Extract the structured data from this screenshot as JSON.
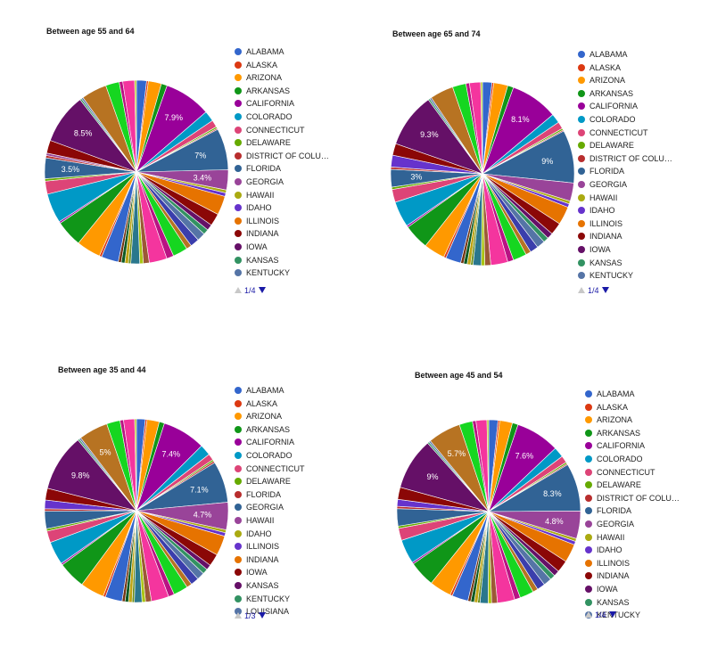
{
  "colors": [
    "#3366cc",
    "#dc3912",
    "#ff9900",
    "#109618",
    "#990099",
    "#0099c6",
    "#dd4477",
    "#66aa00",
    "#b82e2e",
    "#316395",
    "#994499",
    "#aaaa11",
    "#6633cc",
    "#e67300",
    "#8b0707",
    "#651067",
    "#329262",
    "#5574a6",
    "#3b3eac",
    "#b77322",
    "#16d620",
    "#b91383",
    "#f4359e",
    "#9c5935",
    "#a9c413",
    "#2a778d",
    "#668d1c",
    "#bea413",
    "#0c5922",
    "#743411"
  ],
  "chart_data": [
    {
      "type": "pie",
      "title": "Between age 55 and 64",
      "legend": [
        "ALABAMA",
        "ALASKA",
        "ARIZONA",
        "ARKANSAS",
        "CALIFORNIA",
        "COLORADO",
        "CONNECTICUT",
        "DELAWARE",
        "DISTRICT OF COLU…",
        "FLORIDA",
        "GEORGIA",
        "HAWAII",
        "IDAHO",
        "ILLINOIS",
        "INDIANA",
        "IOWA",
        "KANSAS",
        "KENTUCKY"
      ],
      "page": "1/4",
      "slices": [
        {
          "value": 1.7,
          "color": "#3366cc"
        },
        {
          "value": 0.3,
          "color": "#dc3912"
        },
        {
          "value": 2.2,
          "color": "#ff9900"
        },
        {
          "value": 1.0,
          "color": "#109618"
        },
        {
          "value": 7.9,
          "color": "#990099",
          "label": "7.9%"
        },
        {
          "value": 1.8,
          "color": "#0099c6"
        },
        {
          "value": 1.2,
          "color": "#dd4477"
        },
        {
          "value": 0.3,
          "color": "#66aa00"
        },
        {
          "value": 0.2,
          "color": "#b82e2e"
        },
        {
          "value": 7.0,
          "color": "#316395",
          "label": "7%"
        },
        {
          "value": 3.4,
          "color": "#994499",
          "label": "3.4%"
        },
        {
          "value": 0.5,
          "color": "#aaaa11"
        },
        {
          "value": 0.6,
          "color": "#6633cc"
        },
        {
          "value": 3.2,
          "color": "#e67300"
        },
        {
          "value": 2.1,
          "color": "#8b0707"
        },
        {
          "value": 1.0,
          "color": "#651067"
        },
        {
          "value": 0.9,
          "color": "#329262"
        },
        {
          "value": 1.4,
          "color": "#5574a6"
        },
        {
          "value": 1.5,
          "color": "#3b3eac"
        },
        {
          "value": 0.9,
          "color": "#b77322"
        },
        {
          "value": 2.5,
          "color": "#16d620"
        },
        {
          "value": 1.2,
          "color": "#b91383"
        },
        {
          "value": 3.0,
          "color": "#f4359e"
        },
        {
          "value": 1.0,
          "color": "#9c5935"
        },
        {
          "value": 0.6,
          "color": "#a9c413"
        },
        {
          "value": 1.5,
          "color": "#2a778d"
        },
        {
          "value": 0.4,
          "color": "#668d1c"
        },
        {
          "value": 0.6,
          "color": "#bea413"
        },
        {
          "value": 0.6,
          "color": "#0c5922"
        },
        {
          "value": 0.5,
          "color": "#743411"
        },
        {
          "value": 2.9,
          "color": "#3366cc"
        },
        {
          "value": 0.4,
          "color": "#dc3912"
        },
        {
          "value": 4.1,
          "color": "#ff9900"
        },
        {
          "value": 4.5,
          "color": "#109618"
        },
        {
          "value": 0.3,
          "color": "#990099"
        },
        {
          "value": 5.0,
          "color": "#0099c6"
        },
        {
          "value": 2.2,
          "color": "#dd4477"
        },
        {
          "value": 0.4,
          "color": "#66aa00"
        },
        {
          "value": 3.5,
          "color": "#316395",
          "label": "3.5%"
        },
        {
          "value": 0.4,
          "color": "#b82e2e"
        },
        {
          "value": 0.4,
          "color": "#994499"
        },
        {
          "value": 2.2,
          "color": "#8b0707"
        },
        {
          "value": 8.5,
          "color": "#651067",
          "label": "8.5%"
        },
        {
          "value": 0.3,
          "color": "#329262"
        },
        {
          "value": 0.3,
          "color": "#5574a6"
        },
        {
          "value": 4.3,
          "color": "#b77322"
        },
        {
          "value": 2.3,
          "color": "#16d620"
        },
        {
          "value": 0.6,
          "color": "#b91383"
        },
        {
          "value": 2.0,
          "color": "#f4359e"
        },
        {
          "value": 0.3,
          "color": "#a9c413"
        }
      ]
    },
    {
      "type": "pie",
      "title": "Between age 65 and 74",
      "legend": [
        "ALABAMA",
        "ALASKA",
        "ARIZONA",
        "ARKANSAS",
        "CALIFORNIA",
        "COLORADO",
        "CONNECTICUT",
        "DELAWARE",
        "DISTRICT OF COLU…",
        "FLORIDA",
        "GEORGIA",
        "HAWAII",
        "IDAHO",
        "ILLINOIS",
        "INDIANA",
        "IOWA",
        "KANSAS",
        "KENTUCKY"
      ],
      "page": "1/4",
      "slices": [
        {
          "value": 1.6,
          "color": "#3366cc"
        },
        {
          "value": 0.3,
          "color": "#dc3912"
        },
        {
          "value": 2.4,
          "color": "#ff9900"
        },
        {
          "value": 1.0,
          "color": "#109618"
        },
        {
          "value": 8.1,
          "color": "#990099",
          "label": "8.1%"
        },
        {
          "value": 1.6,
          "color": "#0099c6"
        },
        {
          "value": 1.2,
          "color": "#dd4477"
        },
        {
          "value": 0.3,
          "color": "#66aa00"
        },
        {
          "value": 0.2,
          "color": "#b82e2e"
        },
        {
          "value": 9.0,
          "color": "#316395",
          "label": "9%"
        },
        {
          "value": 3.1,
          "color": "#994499"
        },
        {
          "value": 0.5,
          "color": "#aaaa11"
        },
        {
          "value": 0.6,
          "color": "#6633cc"
        },
        {
          "value": 3.1,
          "color": "#e67300"
        },
        {
          "value": 2.1,
          "color": "#8b0707"
        },
        {
          "value": 1.0,
          "color": "#651067"
        },
        {
          "value": 0.9,
          "color": "#329262"
        },
        {
          "value": 1.4,
          "color": "#5574a6"
        },
        {
          "value": 1.4,
          "color": "#3b3eac"
        },
        {
          "value": 0.9,
          "color": "#b77322"
        },
        {
          "value": 2.3,
          "color": "#16d620"
        },
        {
          "value": 1.0,
          "color": "#b91383"
        },
        {
          "value": 2.9,
          "color": "#f4359e"
        },
        {
          "value": 1.0,
          "color": "#9c5935"
        },
        {
          "value": 0.6,
          "color": "#a9c413"
        },
        {
          "value": 1.4,
          "color": "#2a778d"
        },
        {
          "value": 0.4,
          "color": "#668d1c"
        },
        {
          "value": 0.6,
          "color": "#bea413"
        },
        {
          "value": 0.6,
          "color": "#0c5922"
        },
        {
          "value": 0.5,
          "color": "#743411"
        },
        {
          "value": 2.6,
          "color": "#3366cc"
        },
        {
          "value": 0.4,
          "color": "#dc3912"
        },
        {
          "value": 3.6,
          "color": "#ff9900"
        },
        {
          "value": 4.3,
          "color": "#109618"
        },
        {
          "value": 0.3,
          "color": "#990099"
        },
        {
          "value": 4.4,
          "color": "#0099c6"
        },
        {
          "value": 2.2,
          "color": "#dd4477"
        },
        {
          "value": 0.4,
          "color": "#66aa00"
        },
        {
          "value": 3.0,
          "color": "#316395",
          "label": "3%"
        },
        {
          "value": 0.4,
          "color": "#b82e2e"
        },
        {
          "value": 2.0,
          "color": "#6633cc"
        },
        {
          "value": 2.0,
          "color": "#8b0707"
        },
        {
          "value": 9.3,
          "color": "#651067",
          "label": "9.3%"
        },
        {
          "value": 0.3,
          "color": "#329262"
        },
        {
          "value": 0.3,
          "color": "#5574a6"
        },
        {
          "value": 4.0,
          "color": "#b77322"
        },
        {
          "value": 2.3,
          "color": "#16d620"
        },
        {
          "value": 0.6,
          "color": "#b91383"
        },
        {
          "value": 1.9,
          "color": "#f4359e"
        },
        {
          "value": 0.3,
          "color": "#a9c413"
        }
      ]
    },
    {
      "type": "pie",
      "title": "Between age 35 and 44",
      "legend": [
        "ALABAMA",
        "ALASKA",
        "ARIZONA",
        "ARKANSAS",
        "CALIFORNIA",
        "COLORADO",
        "CONNECTICUT",
        "DELAWARE",
        "FLORIDA",
        "GEORGIA",
        "HAWAII",
        "IDAHO",
        "ILLINOIS",
        "INDIANA",
        "IOWA",
        "KANSAS",
        "KENTUCKY",
        "LOUISIANA"
      ],
      "page": "1/3",
      "slices": [
        {
          "value": 1.5,
          "color": "#3366cc"
        },
        {
          "value": 0.3,
          "color": "#dc3912"
        },
        {
          "value": 2.1,
          "color": "#ff9900"
        },
        {
          "value": 0.9,
          "color": "#109618"
        },
        {
          "value": 7.4,
          "color": "#990099",
          "label": "7.4%"
        },
        {
          "value": 1.9,
          "color": "#0099c6"
        },
        {
          "value": 1.1,
          "color": "#dd4477"
        },
        {
          "value": 0.3,
          "color": "#66aa00"
        },
        {
          "value": 0.3,
          "color": "#b82e2e"
        },
        {
          "value": 7.1,
          "color": "#316395",
          "label": "7.1%"
        },
        {
          "value": 4.7,
          "color": "#994499",
          "label": "4.7%"
        },
        {
          "value": 0.5,
          "color": "#aaaa11"
        },
        {
          "value": 0.6,
          "color": "#6633cc"
        },
        {
          "value": 3.4,
          "color": "#e67300"
        },
        {
          "value": 2.1,
          "color": "#8b0707"
        },
        {
          "value": 0.9,
          "color": "#651067"
        },
        {
          "value": 0.9,
          "color": "#329262"
        },
        {
          "value": 1.3,
          "color": "#5574a6"
        },
        {
          "value": 1.4,
          "color": "#3b3eac"
        },
        {
          "value": 0.9,
          "color": "#b77322"
        },
        {
          "value": 2.5,
          "color": "#16d620"
        },
        {
          "value": 1.0,
          "color": "#b91383"
        },
        {
          "value": 3.0,
          "color": "#f4359e"
        },
        {
          "value": 1.0,
          "color": "#9c5935"
        },
        {
          "value": 0.6,
          "color": "#a9c413"
        },
        {
          "value": 1.3,
          "color": "#2a778d"
        },
        {
          "value": 0.4,
          "color": "#668d1c"
        },
        {
          "value": 0.6,
          "color": "#bea413"
        },
        {
          "value": 0.6,
          "color": "#0c5922"
        },
        {
          "value": 0.5,
          "color": "#743411"
        },
        {
          "value": 2.9,
          "color": "#3366cc"
        },
        {
          "value": 0.4,
          "color": "#dc3912"
        },
        {
          "value": 4.1,
          "color": "#ff9900"
        },
        {
          "value": 4.7,
          "color": "#109618"
        },
        {
          "value": 0.3,
          "color": "#990099"
        },
        {
          "value": 4.0,
          "color": "#0099c6"
        },
        {
          "value": 2.0,
          "color": "#dd4477"
        },
        {
          "value": 0.4,
          "color": "#66aa00"
        },
        {
          "value": 3.0,
          "color": "#316395"
        },
        {
          "value": 0.4,
          "color": "#b82e2e"
        },
        {
          "value": 1.5,
          "color": "#6633cc"
        },
        {
          "value": 2.0,
          "color": "#8b0707"
        },
        {
          "value": 9.8,
          "color": "#651067",
          "label": "9.8%"
        },
        {
          "value": 0.3,
          "color": "#329262"
        },
        {
          "value": 0.3,
          "color": "#5574a6"
        },
        {
          "value": 5.0,
          "color": "#b77322",
          "label": "5%"
        },
        {
          "value": 2.3,
          "color": "#16d620"
        },
        {
          "value": 0.6,
          "color": "#b91383"
        },
        {
          "value": 1.9,
          "color": "#f4359e"
        },
        {
          "value": 0.3,
          "color": "#a9c413"
        }
      ]
    },
    {
      "type": "pie",
      "title": "Between age 45 and 54",
      "legend": [
        "ALABAMA",
        "ALASKA",
        "ARIZONA",
        "ARKANSAS",
        "CALIFORNIA",
        "COLORADO",
        "CONNECTICUT",
        "DELAWARE",
        "DISTRICT OF COLU…",
        "FLORIDA",
        "GEORGIA",
        "HAWAII",
        "IDAHO",
        "ILLINOIS",
        "INDIANA",
        "IOWA",
        "KANSAS",
        "KENTUCKY"
      ],
      "page": "1/4",
      "slices": [
        {
          "value": 1.6,
          "color": "#3366cc"
        },
        {
          "value": 0.3,
          "color": "#dc3912"
        },
        {
          "value": 2.2,
          "color": "#ff9900"
        },
        {
          "value": 1.0,
          "color": "#109618"
        },
        {
          "value": 7.6,
          "color": "#990099",
          "label": "7.6%"
        },
        {
          "value": 1.8,
          "color": "#0099c6"
        },
        {
          "value": 1.2,
          "color": "#dd4477"
        },
        {
          "value": 0.3,
          "color": "#66aa00"
        },
        {
          "value": 0.2,
          "color": "#b82e2e"
        },
        {
          "value": 8.3,
          "color": "#316395",
          "label": "8.3%"
        },
        {
          "value": 4.8,
          "color": "#994499",
          "label": "4.8%"
        },
        {
          "value": 0.5,
          "color": "#aaaa11"
        },
        {
          "value": 0.6,
          "color": "#6633cc"
        },
        {
          "value": 3.2,
          "color": "#e67300"
        },
        {
          "value": 2.1,
          "color": "#8b0707"
        },
        {
          "value": 1.0,
          "color": "#651067"
        },
        {
          "value": 0.9,
          "color": "#329262"
        },
        {
          "value": 1.4,
          "color": "#5574a6"
        },
        {
          "value": 1.4,
          "color": "#3b3eac"
        },
        {
          "value": 0.9,
          "color": "#b77322"
        },
        {
          "value": 2.4,
          "color": "#16d620"
        },
        {
          "value": 1.0,
          "color": "#b91383"
        },
        {
          "value": 3.0,
          "color": "#f4359e"
        },
        {
          "value": 1.0,
          "color": "#9c5935"
        },
        {
          "value": 0.6,
          "color": "#a9c413"
        },
        {
          "value": 1.4,
          "color": "#2a778d"
        },
        {
          "value": 0.4,
          "color": "#668d1c"
        },
        {
          "value": 0.6,
          "color": "#bea413"
        },
        {
          "value": 0.6,
          "color": "#0c5922"
        },
        {
          "value": 0.5,
          "color": "#743411"
        },
        {
          "value": 2.8,
          "color": "#3366cc"
        },
        {
          "value": 0.4,
          "color": "#dc3912"
        },
        {
          "value": 3.8,
          "color": "#ff9900"
        },
        {
          "value": 4.5,
          "color": "#109618"
        },
        {
          "value": 0.3,
          "color": "#990099"
        },
        {
          "value": 4.2,
          "color": "#0099c6"
        },
        {
          "value": 2.1,
          "color": "#dd4477"
        },
        {
          "value": 0.4,
          "color": "#66aa00"
        },
        {
          "value": 3.0,
          "color": "#316395"
        },
        {
          "value": 0.4,
          "color": "#b82e2e"
        },
        {
          "value": 1.2,
          "color": "#6633cc"
        },
        {
          "value": 2.1,
          "color": "#8b0707"
        },
        {
          "value": 9.0,
          "color": "#651067",
          "label": "9%"
        },
        {
          "value": 0.3,
          "color": "#329262"
        },
        {
          "value": 0.3,
          "color": "#5574a6"
        },
        {
          "value": 5.7,
          "color": "#b77322",
          "label": "5.7%"
        },
        {
          "value": 2.3,
          "color": "#16d620"
        },
        {
          "value": 0.6,
          "color": "#b91383"
        },
        {
          "value": 1.9,
          "color": "#f4359e"
        },
        {
          "value": 0.3,
          "color": "#a9c413"
        }
      ]
    }
  ]
}
